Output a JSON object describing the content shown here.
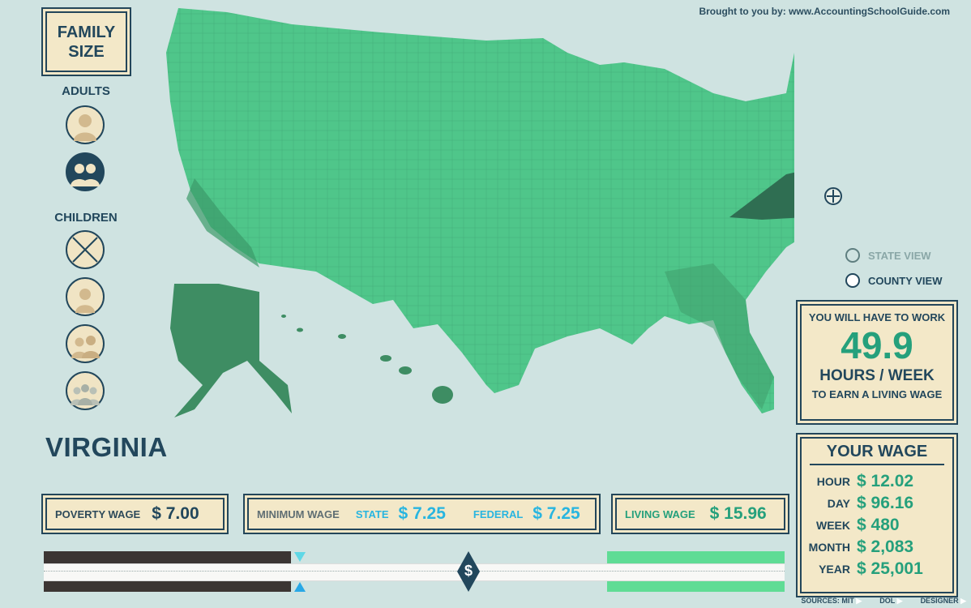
{
  "credit": "Brought to you by:  www.AccountingSchoolGuide.com",
  "sidebar": {
    "title_line1": "FAMILY",
    "title_line2": "SIZE",
    "adults_label": "ADULTS",
    "children_label": "CHILDREN",
    "adults_options": [
      {
        "icon": "one-adult-icon",
        "selected": false
      },
      {
        "icon": "two-adults-icon",
        "selected": true
      }
    ],
    "children_options": [
      {
        "icon": "no-children-icon",
        "selected": false
      },
      {
        "icon": "one-child-icon",
        "selected": false
      },
      {
        "icon": "two-children-icon",
        "selected": false
      },
      {
        "icon": "three-children-icon",
        "selected": false
      }
    ]
  },
  "location": {
    "name": "VIRGINIA"
  },
  "view": {
    "state_label": "STATE VIEW",
    "county_label": "COUNTY VIEW",
    "selected": "county"
  },
  "hours_card": {
    "line1": "YOU WILL HAVE TO WORK",
    "hours": "49.9",
    "unit": "HOURS / WEEK",
    "line2": "TO EARN A LIVING WAGE"
  },
  "your_wage": {
    "title": "YOUR WAGE",
    "rows": [
      {
        "label": "HOUR",
        "value": "$ 12.02"
      },
      {
        "label": "DAY",
        "value": "$ 96.16"
      },
      {
        "label": "WEEK",
        "value": "$ 480"
      },
      {
        "label": "MONTH",
        "value": "$ 2,083"
      },
      {
        "label": "YEAR",
        "value": "$ 25,001"
      }
    ]
  },
  "wages": {
    "poverty_label": "POVERTY WAGE",
    "poverty_value": "$ 7.00",
    "minimum_label": "MINIMUM WAGE",
    "state_label": "STATE",
    "state_value": "$ 7.25",
    "federal_label": "FEDERAL",
    "federal_value": "$ 7.25",
    "living_label": "LIVING WAGE",
    "living_value": "$ 15.96"
  },
  "slider": {
    "handle_symbol": "$"
  },
  "sources": {
    "sources_label": "SOURCES:",
    "mit": "MIT",
    "dol": "DOL",
    "designer": "DESIGNER"
  },
  "colors": {
    "navy": "#22475c",
    "map_green": "#4fc68a",
    "cream": "#f3e8c8",
    "accent_teal": "#25a07c",
    "accent_cyan": "#28c0e6",
    "background": "#cfe3e1"
  }
}
